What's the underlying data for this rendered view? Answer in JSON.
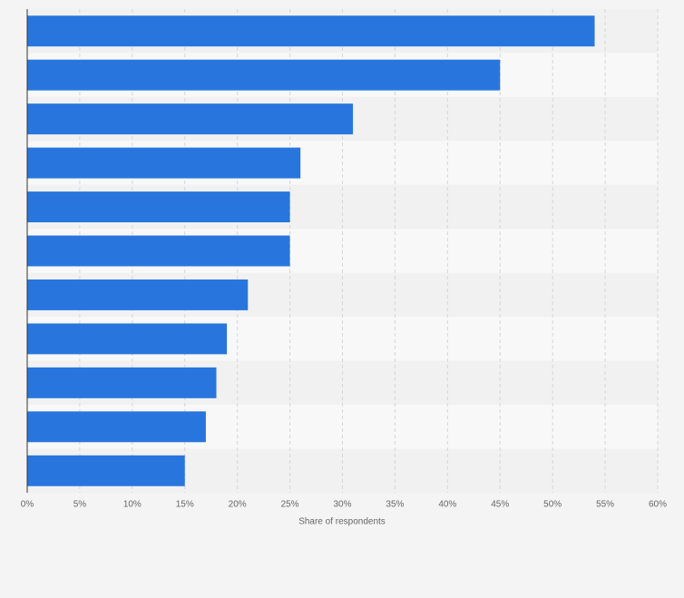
{
  "chart_data": {
    "type": "bar",
    "orientation": "horizontal",
    "categories": [
      null,
      null,
      null,
      null,
      null,
      null,
      null,
      null,
      null,
      null,
      null
    ],
    "values": [
      54,
      45,
      31,
      26,
      25,
      25,
      21,
      19,
      18,
      17,
      15
    ],
    "color": "#2876dd",
    "xlabel": "Share of respondents",
    "xlim": [
      0,
      60
    ],
    "xticks": [
      {
        "value": 0,
        "label": "0%"
      },
      {
        "value": 5,
        "label": "5%"
      },
      {
        "value": 10,
        "label": "10%"
      },
      {
        "value": 15,
        "label": "15%"
      },
      {
        "value": 20,
        "label": "20%"
      },
      {
        "value": 25,
        "label": "25%"
      },
      {
        "value": 30,
        "label": "30%"
      },
      {
        "value": 35,
        "label": "35%"
      },
      {
        "value": 40,
        "label": "40%"
      },
      {
        "value": 45,
        "label": "45%"
      },
      {
        "value": 50,
        "label": "50%"
      },
      {
        "value": 55,
        "label": "55%"
      },
      {
        "value": 60,
        "label": "60%"
      }
    ],
    "grid": true
  }
}
